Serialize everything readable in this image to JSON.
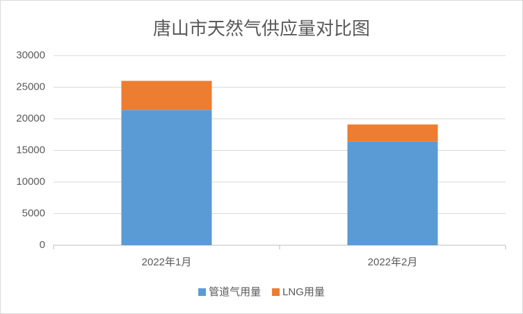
{
  "chart_data": {
    "type": "stacked_bar",
    "title": "唐山市天然气供应量对比图",
    "categories": [
      "2022年1月",
      "2022年2月"
    ],
    "series": [
      {
        "name": "管道气用量",
        "color": "#5b9bd5",
        "values": [
          21400,
          16400
        ]
      },
      {
        "name": "LNG用量",
        "color": "#ed7d31",
        "values": [
          4600,
          2700
        ]
      }
    ],
    "ylim": [
      0,
      30000
    ],
    "yticks": [
      0,
      5000,
      10000,
      15000,
      20000,
      25000,
      30000
    ],
    "grid": true,
    "legend": "bottom"
  }
}
